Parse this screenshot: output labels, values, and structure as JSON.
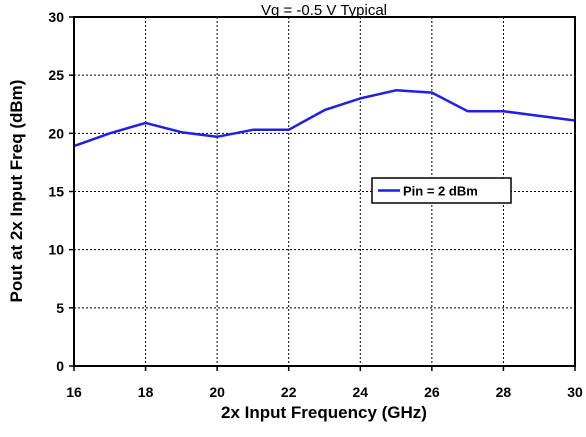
{
  "chart_data": {
    "type": "line",
    "title": "Vg = -0.5 V Typical",
    "xlabel": "2x Input Frequency (GHz)",
    "ylabel": "Pout at 2x Input Freq (dBm)",
    "xlim": [
      16,
      30
    ],
    "ylim": [
      0,
      30
    ],
    "x_ticks": [
      16,
      18,
      20,
      22,
      24,
      26,
      28,
      30
    ],
    "y_ticks": [
      0,
      5,
      10,
      15,
      20,
      25,
      30
    ],
    "x_tick_labels": [
      "16",
      "18",
      "20",
      "22",
      "24",
      "26",
      "28",
      "30"
    ],
    "y_tick_labels": [
      "0",
      "5",
      "10",
      "15",
      "20",
      "25",
      "30"
    ],
    "grid": true,
    "legend_position": "center-right",
    "series": [
      {
        "name": "Pin = 2 dBm",
        "color": "#1f1fe6",
        "x": [
          16,
          17,
          18,
          19,
          20,
          21,
          22,
          23,
          24,
          25,
          26,
          27,
          28,
          29,
          30
        ],
        "y": [
          18.9,
          20.0,
          20.9,
          20.1,
          19.7,
          20.3,
          20.3,
          22.0,
          23.0,
          23.7,
          23.5,
          21.9,
          21.9,
          21.5,
          21.1
        ]
      }
    ]
  }
}
